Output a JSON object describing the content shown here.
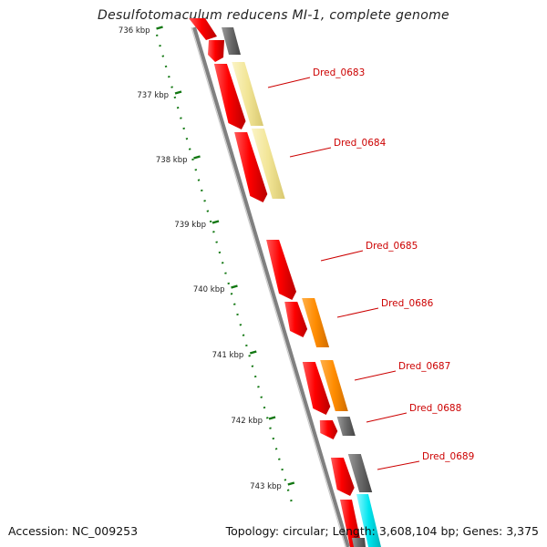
{
  "title": "Desulfotomaculum reducens MI-1, complete genome",
  "footer": {
    "accession": "Accession: NC_009253",
    "stats": "Topology: circular; Length: 3,608,104 bp; Genes: 3,375"
  },
  "colors": {
    "cds_strand": "#ee0000",
    "backbone": "#808080",
    "kbp_ruler": "#117711",
    "label_color": "#cc0000",
    "cog_gray": "#666666",
    "cog_pale_yellow": "#f3e69a",
    "cog_orange": "#ff8c00",
    "cog_cyan": "#00e5ee"
  },
  "ticks": [
    {
      "label": "736 kbp"
    },
    {
      "label": "737 kbp"
    },
    {
      "label": "738 kbp"
    },
    {
      "label": "739 kbp"
    },
    {
      "label": "740 kbp"
    },
    {
      "label": "741 kbp"
    },
    {
      "label": "742 kbp"
    },
    {
      "label": "743 kbp"
    }
  ],
  "genes": [
    {
      "label": "Dred_0683",
      "cog": "cog_pale_yellow"
    },
    {
      "label": "Dred_0684",
      "cog": "cog_pale_yellow"
    },
    {
      "label": "Dred_0685",
      "cog": ""
    },
    {
      "label": "Dred_0686",
      "cog": "cog_orange"
    },
    {
      "label": "Dred_0687",
      "cog": "cog_orange"
    },
    {
      "label": "Dred_0688",
      "cog": "cog_gray"
    },
    {
      "label": "Dred_0689",
      "cog": "cog_gray"
    }
  ]
}
